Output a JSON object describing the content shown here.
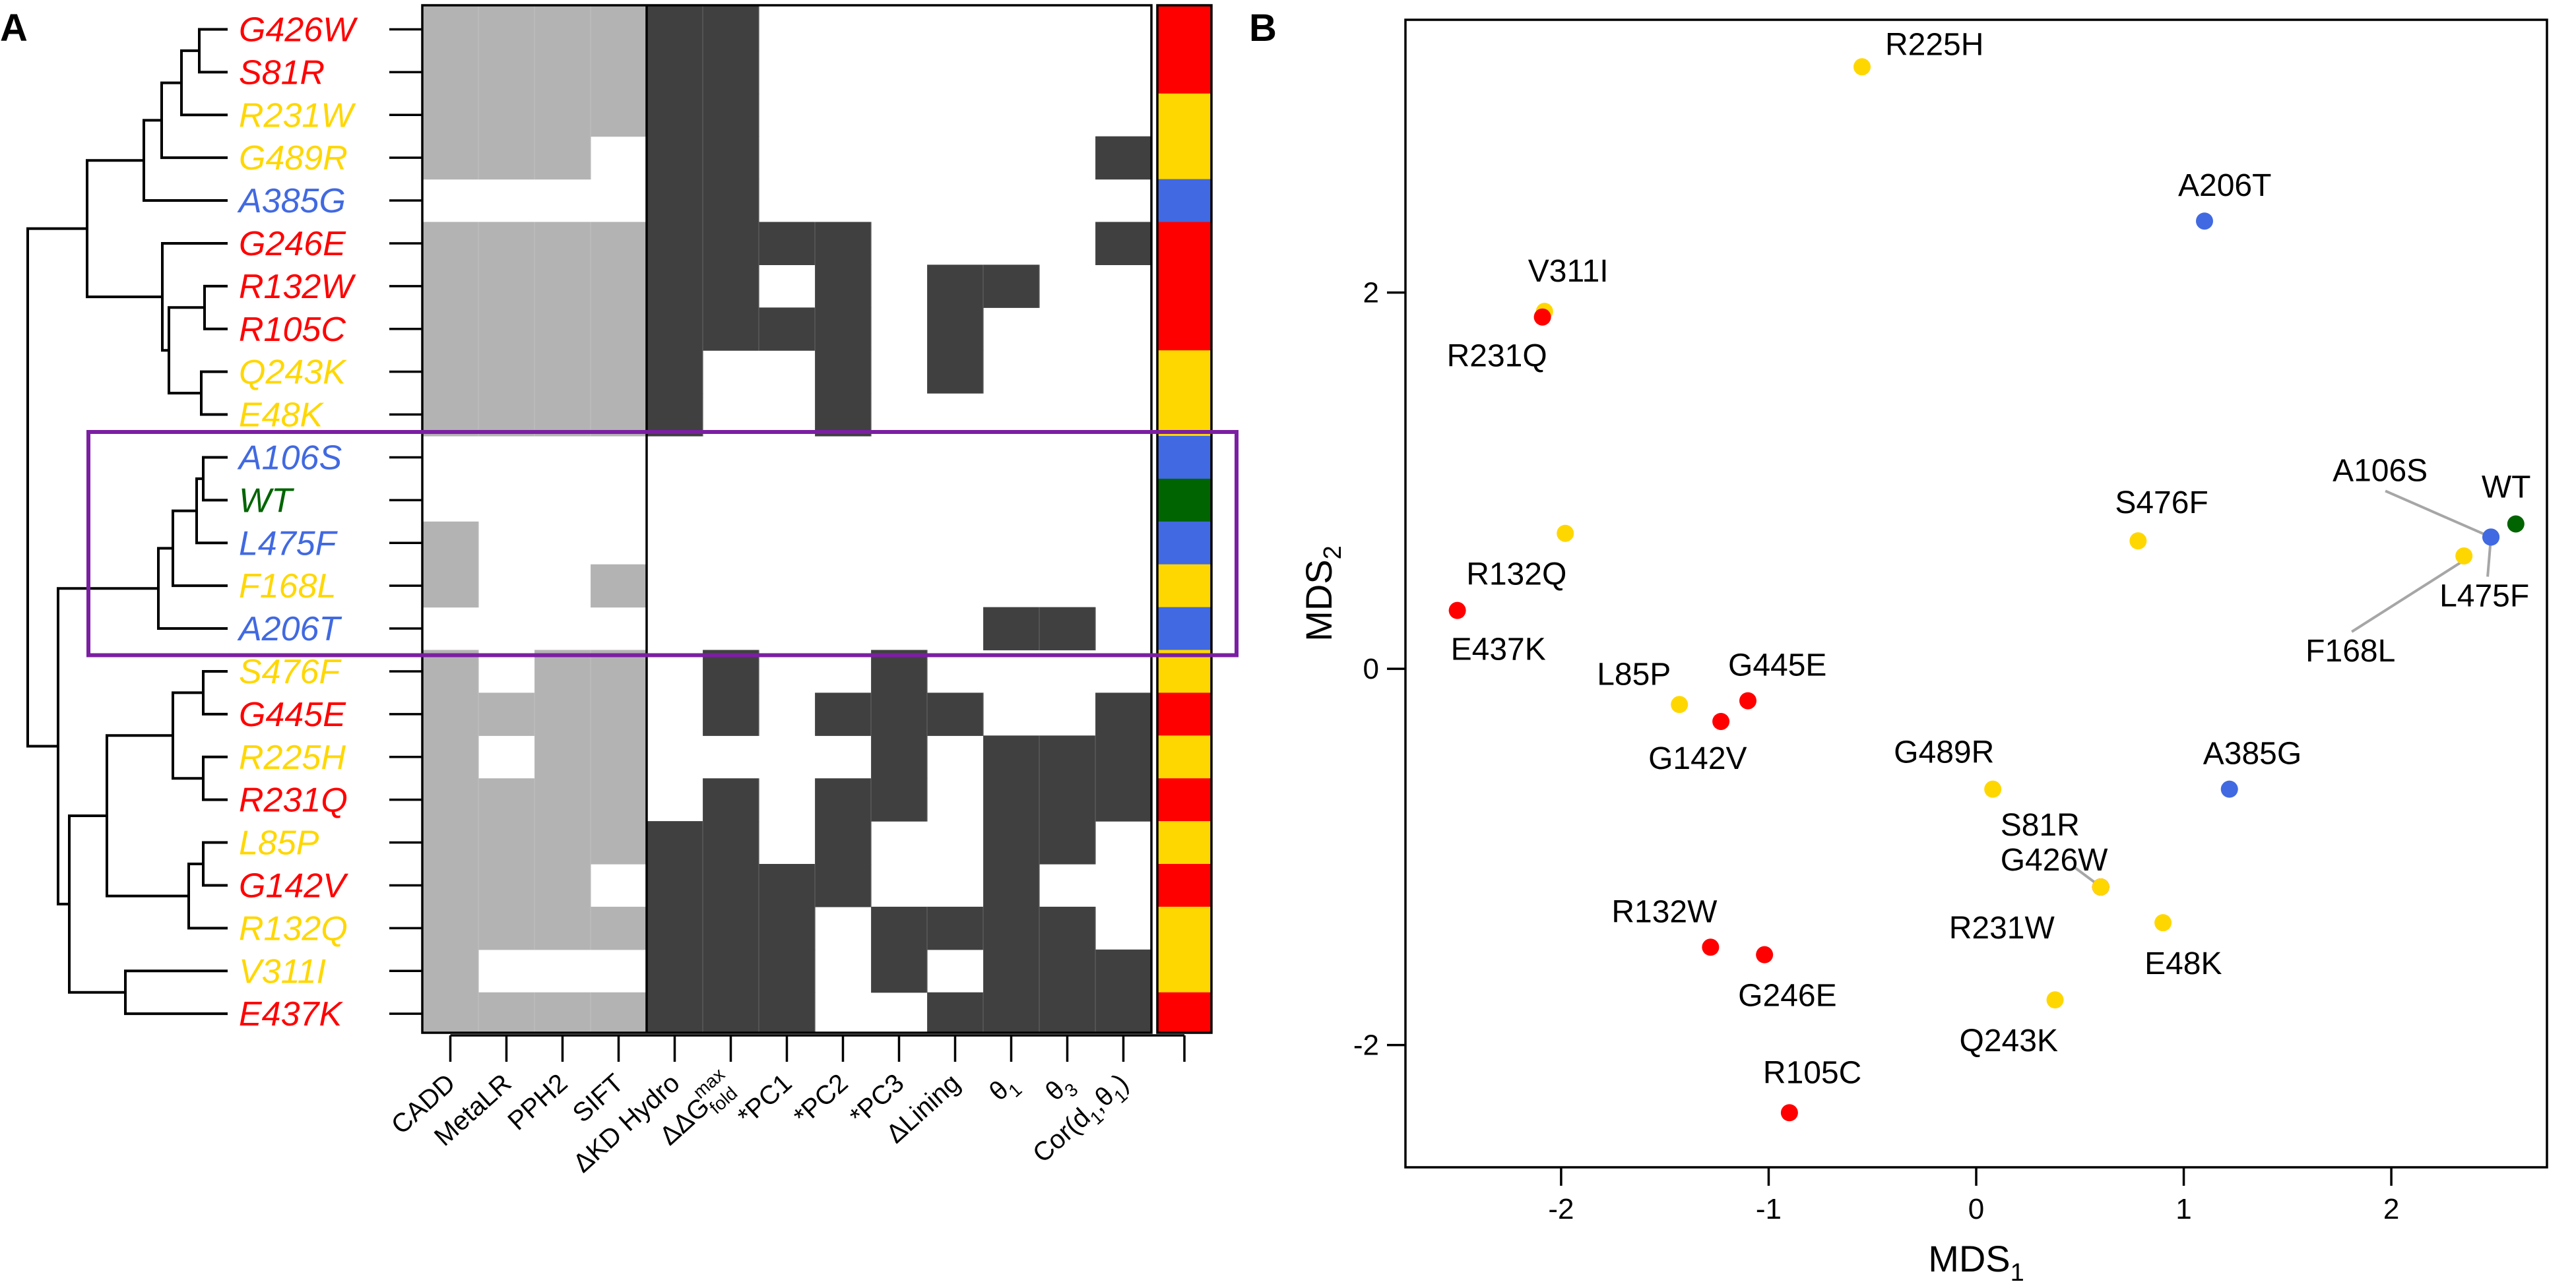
{
  "panel_a_label": "A",
  "panel_b_label": "B",
  "colors": {
    "red": "#ff0000",
    "yellow": "#ffd700",
    "blue": "#4169e1",
    "green": "#006400",
    "dark": "#404040",
    "light": "#b3b3b3",
    "highlight_box": "#7b1fa2"
  },
  "chart_data": [
    {
      "type": "heatmap",
      "title": "",
      "rows": [
        {
          "label": "G426W",
          "group": "red",
          "cells": [
            2,
            2,
            2,
            2,
            1,
            1,
            0,
            0,
            0,
            0,
            0,
            0,
            0
          ]
        },
        {
          "label": "S81R",
          "group": "red",
          "cells": [
            2,
            2,
            2,
            2,
            1,
            1,
            0,
            0,
            0,
            0,
            0,
            0,
            0
          ]
        },
        {
          "label": "R231W",
          "group": "yellow",
          "cells": [
            2,
            2,
            2,
            2,
            1,
            1,
            0,
            0,
            0,
            0,
            0,
            0,
            0
          ]
        },
        {
          "label": "G489R",
          "group": "yellow",
          "cells": [
            2,
            2,
            2,
            0,
            1,
            1,
            0,
            0,
            0,
            0,
            0,
            0,
            1
          ]
        },
        {
          "label": "A385G",
          "group": "blue",
          "cells": [
            0,
            0,
            0,
            0,
            1,
            1,
            0,
            0,
            0,
            0,
            0,
            0,
            0
          ]
        },
        {
          "label": "G246E",
          "group": "red",
          "cells": [
            2,
            2,
            2,
            2,
            1,
            1,
            1,
            1,
            0,
            0,
            0,
            0,
            1
          ]
        },
        {
          "label": "R132W",
          "group": "red",
          "cells": [
            2,
            2,
            2,
            2,
            1,
            1,
            0,
            1,
            0,
            1,
            1,
            0,
            0
          ]
        },
        {
          "label": "R105C",
          "group": "red",
          "cells": [
            2,
            2,
            2,
            2,
            1,
            1,
            1,
            1,
            0,
            1,
            0,
            0,
            0
          ]
        },
        {
          "label": "Q243K",
          "group": "yellow",
          "cells": [
            2,
            2,
            2,
            2,
            1,
            0,
            0,
            1,
            0,
            1,
            0,
            0,
            0
          ]
        },
        {
          "label": "E48K",
          "group": "yellow",
          "cells": [
            2,
            2,
            2,
            2,
            1,
            0,
            0,
            1,
            0,
            0,
            0,
            0,
            0
          ]
        },
        {
          "label": "A106S",
          "group": "blue",
          "cells": [
            0,
            0,
            0,
            0,
            0,
            0,
            0,
            0,
            0,
            0,
            0,
            0,
            0
          ]
        },
        {
          "label": "WT",
          "group": "green",
          "cells": [
            0,
            0,
            0,
            0,
            0,
            0,
            0,
            0,
            0,
            0,
            0,
            0,
            0
          ]
        },
        {
          "label": "L475F",
          "group": "blue",
          "cells": [
            2,
            0,
            0,
            0,
            0,
            0,
            0,
            0,
            0,
            0,
            0,
            0,
            0
          ]
        },
        {
          "label": "F168L",
          "group": "yellow",
          "cells": [
            2,
            0,
            0,
            2,
            0,
            0,
            0,
            0,
            0,
            0,
            0,
            0,
            0
          ]
        },
        {
          "label": "A206T",
          "group": "blue",
          "cells": [
            0,
            0,
            0,
            0,
            0,
            0,
            0,
            0,
            0,
            0,
            1,
            1,
            0
          ]
        },
        {
          "label": "S476F",
          "group": "yellow",
          "cells": [
            2,
            0,
            2,
            2,
            0,
            1,
            0,
            0,
            1,
            0,
            0,
            0,
            0
          ]
        },
        {
          "label": "G445E",
          "group": "red",
          "cells": [
            2,
            2,
            2,
            2,
            0,
            1,
            0,
            1,
            1,
            1,
            0,
            0,
            1
          ]
        },
        {
          "label": "R225H",
          "group": "yellow",
          "cells": [
            2,
            0,
            2,
            2,
            0,
            0,
            0,
            0,
            1,
            0,
            1,
            1,
            1
          ]
        },
        {
          "label": "R231Q",
          "group": "red",
          "cells": [
            2,
            2,
            2,
            2,
            0,
            1,
            0,
            1,
            1,
            0,
            1,
            1,
            1
          ]
        },
        {
          "label": "L85P",
          "group": "yellow",
          "cells": [
            2,
            2,
            2,
            2,
            1,
            1,
            0,
            1,
            0,
            0,
            1,
            1,
            0
          ]
        },
        {
          "label": "G142V",
          "group": "red",
          "cells": [
            2,
            2,
            2,
            0,
            1,
            1,
            1,
            1,
            0,
            0,
            1,
            0,
            0
          ]
        },
        {
          "label": "R132Q",
          "group": "yellow",
          "cells": [
            2,
            2,
            2,
            2,
            1,
            1,
            1,
            0,
            1,
            1,
            1,
            1,
            0
          ]
        },
        {
          "label": "V311I",
          "group": "yellow",
          "cells": [
            2,
            0,
            0,
            0,
            1,
            1,
            1,
            0,
            1,
            0,
            1,
            1,
            1
          ]
        },
        {
          "label": "E437K",
          "group": "red",
          "cells": [
            2,
            2,
            2,
            2,
            1,
            1,
            1,
            0,
            0,
            1,
            1,
            1,
            1
          ]
        }
      ],
      "columns": [
        {
          "label": "CADD"
        },
        {
          "label": "MetaLR"
        },
        {
          "label": "PPH2"
        },
        {
          "label": "SIFT"
        },
        {
          "label": "ΔKD Hydro"
        },
        {
          "label": "ΔΔG",
          "sup": "max",
          "sub": "fold"
        },
        {
          "label": "*PC1"
        },
        {
          "label": "*PC2"
        },
        {
          "label": "*PC3"
        },
        {
          "label": "ΔLining"
        },
        {
          "label": "θ",
          "sub": "1"
        },
        {
          "label": "θ",
          "sub": "3"
        },
        {
          "label": "Cor(d",
          "sub": "1",
          "tail": ",θ",
          "sub2": "1",
          "tail2": ")"
        }
      ],
      "highlight_rows": [
        "A106S",
        "A206T"
      ]
    },
    {
      "type": "scatter",
      "title": "",
      "xlabel": "MDS",
      "xlabel_sub": "1",
      "ylabel": "MDS",
      "ylabel_sub": "2",
      "xlim": [
        -2.75,
        2.75
      ],
      "ylim": [
        -2.65,
        3.45
      ],
      "xticks": [
        "-2",
        "-1",
        "0",
        "1",
        "2"
      ],
      "yticks": [
        "-2",
        "0",
        "2"
      ],
      "points": [
        {
          "label": "R225H",
          "x": -0.55,
          "y": 3.2,
          "group": "yellow"
        },
        {
          "label": "A206T",
          "x": 1.1,
          "y": 2.38,
          "group": "blue"
        },
        {
          "label": "V311I",
          "x": -2.08,
          "y": 1.9,
          "group": "yellow"
        },
        {
          "label": "R231Q",
          "x": -2.09,
          "y": 1.87,
          "group": "red"
        },
        {
          "label": "A106S",
          "x": 2.48,
          "y": 0.7,
          "group": "blue"
        },
        {
          "label": "WT",
          "x": 2.6,
          "y": 0.77,
          "group": "green"
        },
        {
          "label": "L475F",
          "x": 2.48,
          "y": 0.7,
          "group": "blue"
        },
        {
          "label": "F168L",
          "x": 2.35,
          "y": 0.6,
          "group": "yellow"
        },
        {
          "label": "S476F",
          "x": 0.78,
          "y": 0.68,
          "group": "yellow"
        },
        {
          "label": "R132Q",
          "x": -1.98,
          "y": 0.72,
          "group": "yellow"
        },
        {
          "label": "E437K",
          "x": -2.5,
          "y": 0.31,
          "group": "red"
        },
        {
          "label": "L85P",
          "x": -1.43,
          "y": -0.19,
          "group": "yellow"
        },
        {
          "label": "G445E",
          "x": -1.1,
          "y": -0.17,
          "group": "red"
        },
        {
          "label": "G142V",
          "x": -1.23,
          "y": -0.28,
          "group": "red"
        },
        {
          "label": "G489R",
          "x": 0.08,
          "y": -0.64,
          "group": "yellow"
        },
        {
          "label": "A385G",
          "x": 1.22,
          "y": -0.64,
          "group": "blue"
        },
        {
          "label": "S81R",
          "x": 0.6,
          "y": -1.16,
          "group": "red"
        },
        {
          "label": "G426W",
          "x": 0.6,
          "y": -1.16,
          "group": "red"
        },
        {
          "label": "R231W",
          "x": 0.6,
          "y": -1.16,
          "group": "yellow"
        },
        {
          "label": "E48K",
          "x": 0.9,
          "y": -1.35,
          "group": "yellow"
        },
        {
          "label": "R132W",
          "x": -1.28,
          "y": -1.48,
          "group": "red"
        },
        {
          "label": "G246E",
          "x": -1.02,
          "y": -1.52,
          "group": "red"
        },
        {
          "label": "Q243K",
          "x": 0.38,
          "y": -1.76,
          "group": "yellow"
        },
        {
          "label": "R105C",
          "x": -0.9,
          "y": -2.36,
          "group": "red"
        }
      ]
    }
  ]
}
